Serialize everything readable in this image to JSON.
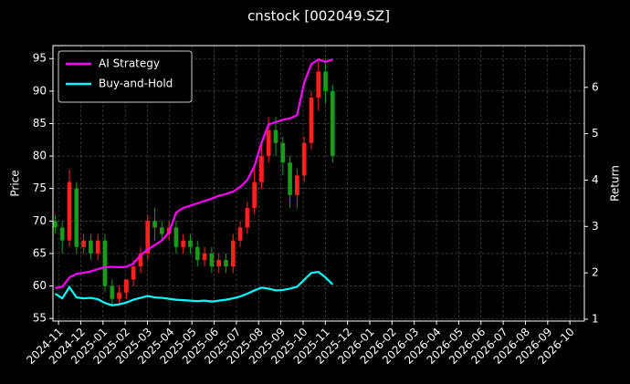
{
  "chart_data": {
    "type": "candlestick",
    "title": "cnstock [002049.SZ]",
    "ylabel": "Price",
    "y2label": "Return",
    "x": [
      -0.15,
      0.17,
      0.49,
      0.81,
      1.13,
      1.45,
      1.77,
      2.09,
      2.41,
      2.73,
      3.05,
      3.37,
      3.69,
      4.01,
      4.33,
      4.65,
      4.97,
      5.29,
      5.61,
      5.93,
      6.25,
      6.57,
      6.89,
      7.21,
      7.53,
      7.85,
      8.17,
      8.49,
      8.81,
      9.13,
      9.45,
      9.77,
      10.09,
      10.41,
      10.73,
      11.05,
      11.37,
      11.69,
      12.01,
      12.33
    ],
    "open": [
      70,
      69,
      67,
      75,
      66,
      67,
      65,
      67,
      60,
      58,
      59,
      61,
      63,
      65,
      70,
      69,
      68,
      69,
      66,
      67,
      66,
      64,
      65,
      63,
      64,
      63,
      67,
      69,
      72,
      76,
      80,
      84,
      82,
      79,
      74,
      77,
      82,
      89,
      93,
      90
    ],
    "high": [
      71,
      70,
      78,
      76,
      68,
      68,
      68,
      68,
      61,
      60,
      61,
      64,
      66,
      71,
      72,
      70,
      70,
      70,
      68,
      68,
      67,
      66,
      66,
      65,
      65,
      68,
      70,
      73,
      78,
      82,
      86,
      86,
      83,
      80,
      78,
      83,
      90,
      95,
      95,
      91
    ],
    "low": [
      68,
      65,
      66,
      65,
      65,
      64,
      64,
      59,
      57,
      57,
      58,
      60,
      62,
      64,
      67,
      67,
      67,
      65,
      65,
      65,
      63,
      63,
      62,
      62,
      62,
      62,
      66,
      68,
      71,
      75,
      79,
      80,
      77,
      72,
      72,
      76,
      81,
      87,
      88,
      79
    ],
    "close": [
      69,
      67,
      76,
      66,
      67,
      65,
      67,
      60,
      58,
      59,
      61,
      63,
      65,
      70,
      69,
      68,
      69,
      66,
      67,
      66,
      64,
      65,
      63,
      64,
      63,
      67,
      69,
      72,
      76,
      80,
      84,
      82,
      79,
      74,
      77,
      82,
      89,
      93,
      90,
      80
    ],
    "up_color": "#ff2020",
    "down_color": "#1a9a1a",
    "series": [
      {
        "name": "AI Strategy",
        "color": "#ff00ff",
        "axis": "y2",
        "values": [
          1.67,
          1.7,
          1.9,
          1.98,
          2.0,
          2.03,
          2.08,
          2.12,
          2.13,
          2.12,
          2.13,
          2.2,
          2.38,
          2.5,
          2.6,
          2.7,
          2.87,
          3.3,
          3.4,
          3.45,
          3.5,
          3.55,
          3.6,
          3.66,
          3.7,
          3.75,
          3.85,
          4.0,
          4.3,
          4.8,
          5.2,
          5.25,
          5.3,
          5.33,
          5.4,
          6.1,
          6.5,
          6.6,
          6.55,
          6.6
        ]
      },
      {
        "name": "Buy-and-Hold",
        "color": "#00ffff",
        "axis": "y2",
        "values": [
          1.55,
          1.45,
          1.69,
          1.47,
          1.45,
          1.46,
          1.43,
          1.35,
          1.3,
          1.32,
          1.36,
          1.42,
          1.46,
          1.5,
          1.47,
          1.46,
          1.44,
          1.42,
          1.41,
          1.4,
          1.39,
          1.4,
          1.38,
          1.4,
          1.42,
          1.45,
          1.49,
          1.55,
          1.62,
          1.68,
          1.66,
          1.62,
          1.63,
          1.66,
          1.7,
          1.85,
          2.0,
          2.02,
          1.9,
          1.75
        ]
      }
    ],
    "xlim": [
      -0.25,
      23.65
    ],
    "xticks": [
      {
        "value": 0,
        "label": "2024-11"
      },
      {
        "value": 1,
        "label": "2024-12"
      },
      {
        "value": 2,
        "label": "2025-01"
      },
      {
        "value": 3,
        "label": "2025-02"
      },
      {
        "value": 4,
        "label": "2025-03"
      },
      {
        "value": 5,
        "label": "2025-04"
      },
      {
        "value": 6,
        "label": "2025-05"
      },
      {
        "value": 7,
        "label": "2025-06"
      },
      {
        "value": 8,
        "label": "2025-07"
      },
      {
        "value": 9,
        "label": "2025-08"
      },
      {
        "value": 10,
        "label": "2025-09"
      },
      {
        "value": 11,
        "label": "2025-10"
      },
      {
        "value": 12,
        "label": "2025-11"
      },
      {
        "value": 13,
        "label": "2025-12"
      },
      {
        "value": 14,
        "label": "2026-01"
      },
      {
        "value": 15,
        "label": "2026-02"
      },
      {
        "value": 16,
        "label": "2026-03"
      },
      {
        "value": 17,
        "label": "2026-04"
      },
      {
        "value": 18,
        "label": "2026-05"
      },
      {
        "value": 19,
        "label": "2026-06"
      },
      {
        "value": 20,
        "label": "2026-07"
      },
      {
        "value": 21,
        "label": "2026-08"
      },
      {
        "value": 22,
        "label": "2026-09"
      },
      {
        "value": 23,
        "label": "2026-10"
      }
    ],
    "ylim": [
      54.6,
      97
    ],
    "yticks": [
      55,
      60,
      65,
      70,
      75,
      80,
      85,
      90,
      95
    ],
    "y2lim": [
      0.96,
      6.9
    ],
    "y2ticks": [
      1,
      2,
      3,
      4,
      5,
      6
    ],
    "grid": true,
    "legend": "upper left"
  }
}
